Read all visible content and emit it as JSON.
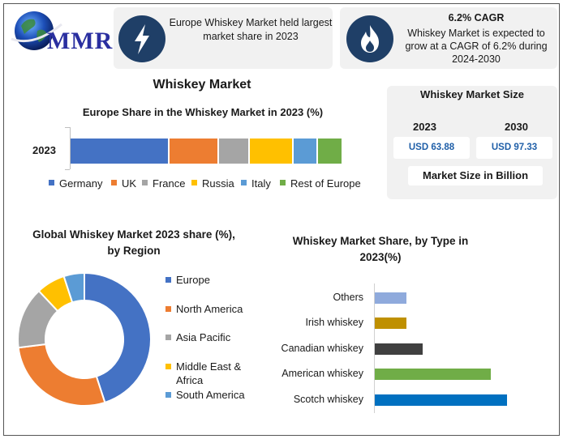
{
  "logo": {
    "text": "MMR"
  },
  "header": {
    "card1": {
      "icon": "lightning-icon",
      "text": "Europe Whiskey Market held largest market share in 2023"
    },
    "card2": {
      "icon": "flame-icon",
      "title": "6.2% CAGR",
      "text": "Whiskey Market is expected to grow at a CAGR of 6.2% during 2024-2030"
    }
  },
  "main_title": "Whiskey Market",
  "market_size": {
    "title": "Whiskey Market Size",
    "year1": "2023",
    "value1": "USD 63.88",
    "year2": "2030",
    "value2": "USD 97.33",
    "unit": "Market Size in Billion"
  },
  "colors": {
    "germany": "#4472c4",
    "uk": "#ed7d31",
    "france": "#a5a5a5",
    "russia": "#ffc000",
    "italy": "#5b9bd5",
    "rest": "#70ad47",
    "others": "#8faadc",
    "irish": "#bf9000",
    "canadian": "#404040",
    "american": "#70ad47",
    "scotch": "#0070c0",
    "badge": "#1f3f67"
  },
  "chart_data": [
    {
      "type": "bar",
      "orientation": "horizontal-stacked",
      "title": "Europe Share in the Whiskey Market in 2023 (%)",
      "categories": [
        "2023"
      ],
      "series": [
        {
          "name": "Germany",
          "values": [
            36
          ]
        },
        {
          "name": "UK",
          "values": [
            18
          ]
        },
        {
          "name": "France",
          "values": [
            11
          ]
        },
        {
          "name": "Russia",
          "values": [
            16
          ]
        },
        {
          "name": "Italy",
          "values": [
            9
          ]
        },
        {
          "name": "Rest of Europe",
          "values": [
            9
          ]
        }
      ],
      "legend": "bottom"
    },
    {
      "type": "pie",
      "variant": "donut",
      "title": "Global Whiskey Market 2023 share (%), by Region",
      "labels": [
        "Europe",
        "North America",
        "Asia Pacific",
        "Middle East & Africa",
        "South America"
      ],
      "values": [
        45,
        28,
        15,
        7,
        5
      ],
      "legend": "right"
    },
    {
      "type": "bar",
      "orientation": "horizontal",
      "title": "Whiskey Market Share, by Type in 2023(%)",
      "categories": [
        "Others",
        "Irish whiskey",
        "Canadian whiskey",
        "American whiskey",
        "Scotch whiskey"
      ],
      "values": [
        6,
        6,
        9,
        22,
        25
      ],
      "xlim": [
        0,
        30
      ]
    }
  ]
}
